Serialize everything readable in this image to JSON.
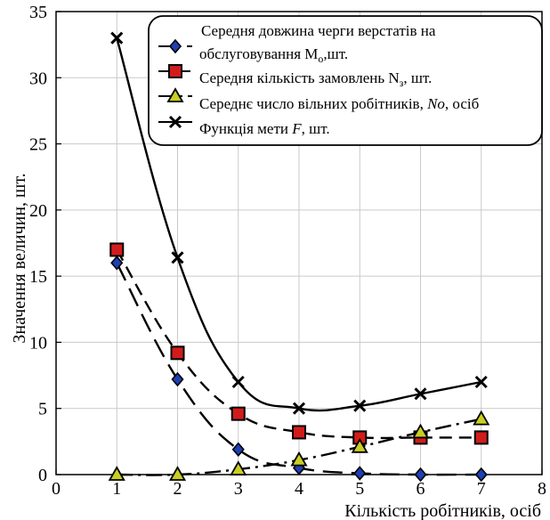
{
  "chart_data": {
    "type": "line",
    "title": "",
    "xlabel": "Кількість робітників, осіб",
    "ylabel": "Значення величин, шт.",
    "xlim": [
      0,
      8
    ],
    "ylim": [
      0,
      35
    ],
    "xticks": [
      0,
      1,
      2,
      3,
      4,
      5,
      6,
      7,
      8
    ],
    "yticks": [
      0,
      5,
      10,
      15,
      20,
      25,
      30,
      35
    ],
    "grid": true,
    "legend_position": "top-right",
    "x": [
      1,
      2,
      3,
      4,
      5,
      6,
      7
    ],
    "series": [
      {
        "name": "Середня довжина черги верстатів на обслуговування Mo,шт.",
        "legend_lines": [
          "Середня довжина черги верстатів на",
          "обслуговування M",
          "o",
          ",шт."
        ],
        "values": [
          16,
          7.2,
          1.9,
          0.5,
          0.1,
          0,
          0
        ],
        "marker": "diamond",
        "dash": "long-dash",
        "color": "#1f3fb5"
      },
      {
        "name": "Середня кількість замовлень Nз, шт.",
        "legend_lines": [
          "Середня кількість замовлень N",
          "з",
          ", шт."
        ],
        "values": [
          17,
          9.2,
          4.6,
          3.2,
          2.8,
          2.8,
          2.8
        ],
        "marker": "square",
        "dash": "dash",
        "color": "#d21c1c"
      },
      {
        "name": "Середнє число вільних робітників, No, осіб",
        "legend_lines": [
          "Середнє число вільних робітників, ",
          "No",
          ", осіб"
        ],
        "values": [
          0,
          0,
          0.4,
          1.1,
          2.1,
          3.2,
          4.2
        ],
        "marker": "triangle",
        "dash": "dash-dot",
        "color": "#c8cf22"
      },
      {
        "name": "Функція мети F, шт.",
        "legend_lines": [
          "Функція мети ",
          "F",
          ", шт."
        ],
        "values": [
          33,
          16.4,
          7,
          5,
          5.2,
          6.1,
          7
        ],
        "marker": "x",
        "dash": "solid",
        "color": "#000000"
      }
    ]
  }
}
